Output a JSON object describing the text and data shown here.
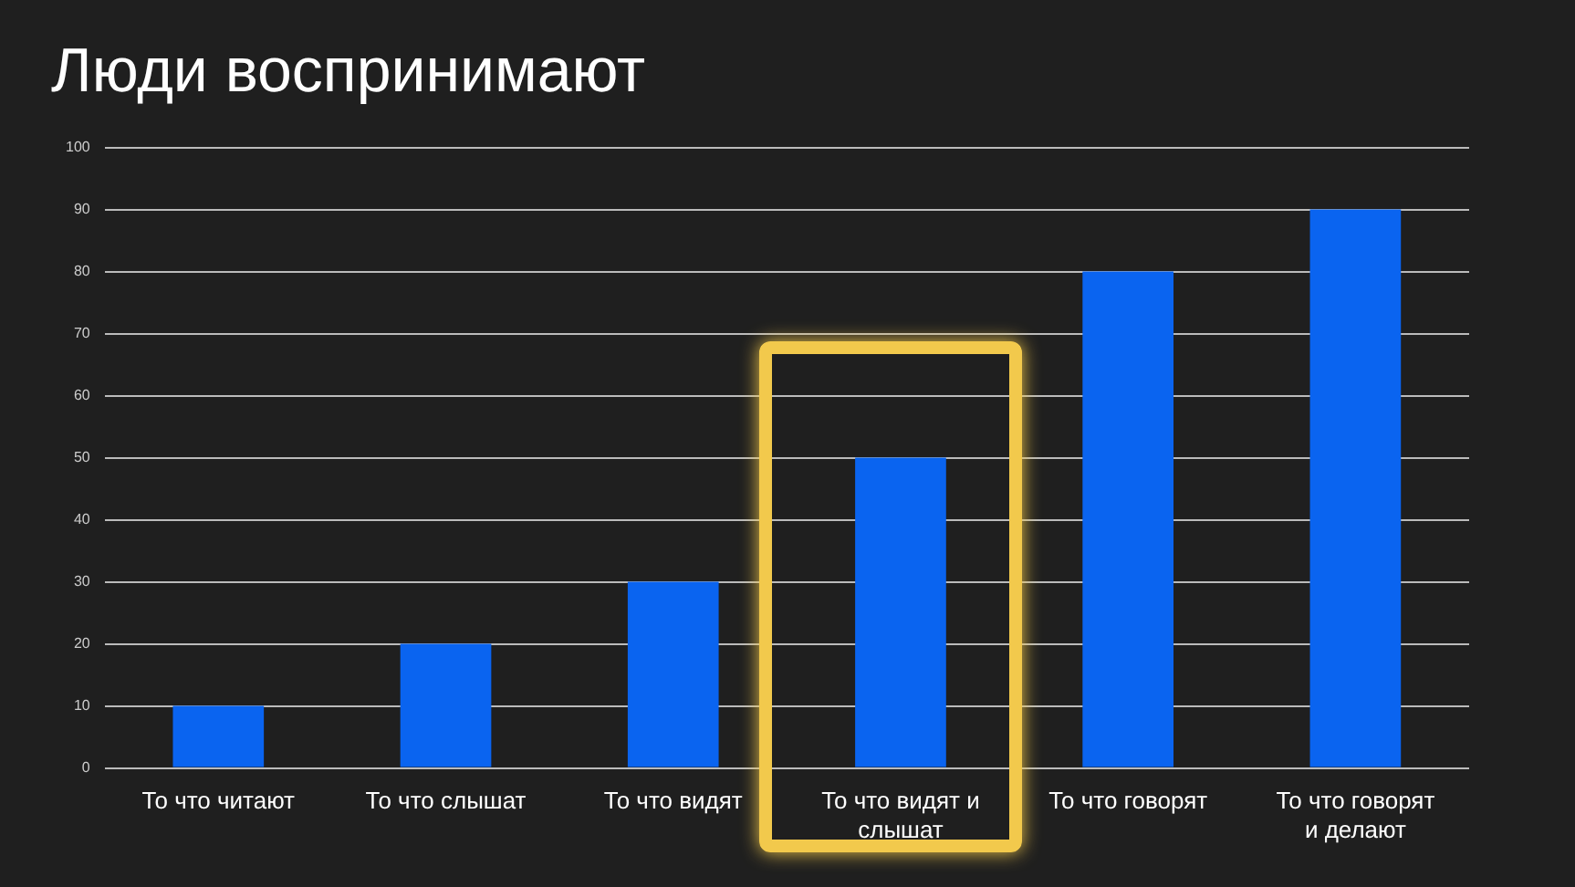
{
  "chart_data": {
    "type": "bar",
    "title": "Люди воспринимают",
    "categories": [
      "То что читают",
      "То что слышат",
      "То что видят",
      "То что видят и слышат",
      "То что говорят",
      "То что говорят и делают"
    ],
    "values": [
      10,
      20,
      30,
      50,
      80,
      90
    ],
    "color": "#0a64f0",
    "ylim": [
      0,
      100
    ],
    "yticks": [
      0,
      10,
      20,
      30,
      40,
      50,
      60,
      70,
      80,
      90,
      100
    ],
    "grid": "y"
  }
}
